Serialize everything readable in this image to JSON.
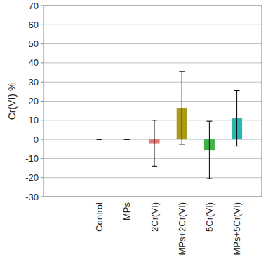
{
  "chart_data": {
    "type": "bar",
    "y_label": "Cr(VI) %",
    "categories": [
      "Control",
      "MPs",
      "2Cr(VI)",
      "MPs+2Cr(VI)",
      "5Cr(VI)",
      "MPs+5Cr(VI)"
    ],
    "values": [
      0,
      0,
      -2,
      16.5,
      -5.5,
      11
    ],
    "errors": [
      0,
      0,
      12,
      19,
      15,
      14.5
    ],
    "colors": [
      "#808080",
      "#808080",
      "#e27777",
      "#a99a1c",
      "#3fb24a",
      "#2bb5b3"
    ],
    "ylim": [
      -30,
      70
    ],
    "yticks": [
      -30,
      -20,
      -10,
      0,
      10,
      20,
      30,
      40,
      50,
      60,
      70
    ],
    "grid": true
  }
}
